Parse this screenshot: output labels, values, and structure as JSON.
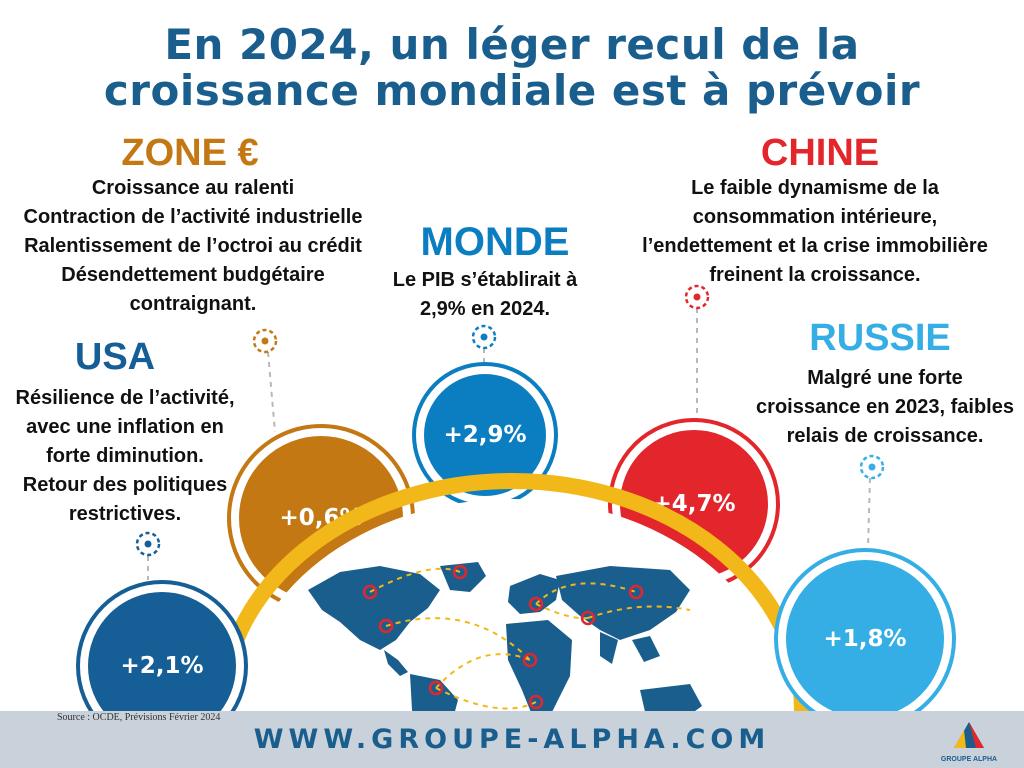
{
  "title": [
    "En 2024, un léger recul de la",
    "croissance mondiale est à prévoir"
  ],
  "regions": {
    "zone_euro": {
      "name": "ZONE €",
      "color": "#c47814",
      "value": "+0,6%",
      "lines": [
        "Croissance au ralenti",
        "Contraction de l’activité industrielle",
        "Ralentissement de l’octroi au crédit",
        "Désendettement budgétaire",
        "contraignant."
      ]
    },
    "monde": {
      "name": "MONDE",
      "color": "#0b7ec2",
      "value": "+2,9%",
      "lines": [
        "Le PIB s’établirait à",
        "2,9% en 2024."
      ]
    },
    "chine": {
      "name": "CHINE",
      "color": "#e2262c",
      "value": "+4,7%",
      "lines": [
        "Le faible dynamisme de la",
        "consommation intérieure,",
        "l’endettement et la crise immobilière",
        "freinent la croissance."
      ]
    },
    "usa": {
      "name": "USA",
      "color": "#155e96",
      "value": "+2,1%",
      "lines": [
        "Résilience de l’activité,",
        "avec une inflation en",
        "forte diminution.",
        "Retour des politiques",
        "restrictives."
      ]
    },
    "russie": {
      "name": "RUSSIE",
      "color": "#35aee6",
      "value": "+1,8%",
      "lines": [
        "Malgré une forte",
        "croissance en 2023, faibles",
        "relais de croissance."
      ]
    }
  },
  "source": "Source : OCDE, Prévisions Février 2024",
  "footer_url": "WWW.GROUPE-ALPHA.COM",
  "logo_text": "GROUPE ALPHA",
  "colors": {
    "title": "#1a5e8e",
    "arc": "#f2b81a",
    "map": "#1a5e8e",
    "footer_bg": "#c9d1db"
  }
}
